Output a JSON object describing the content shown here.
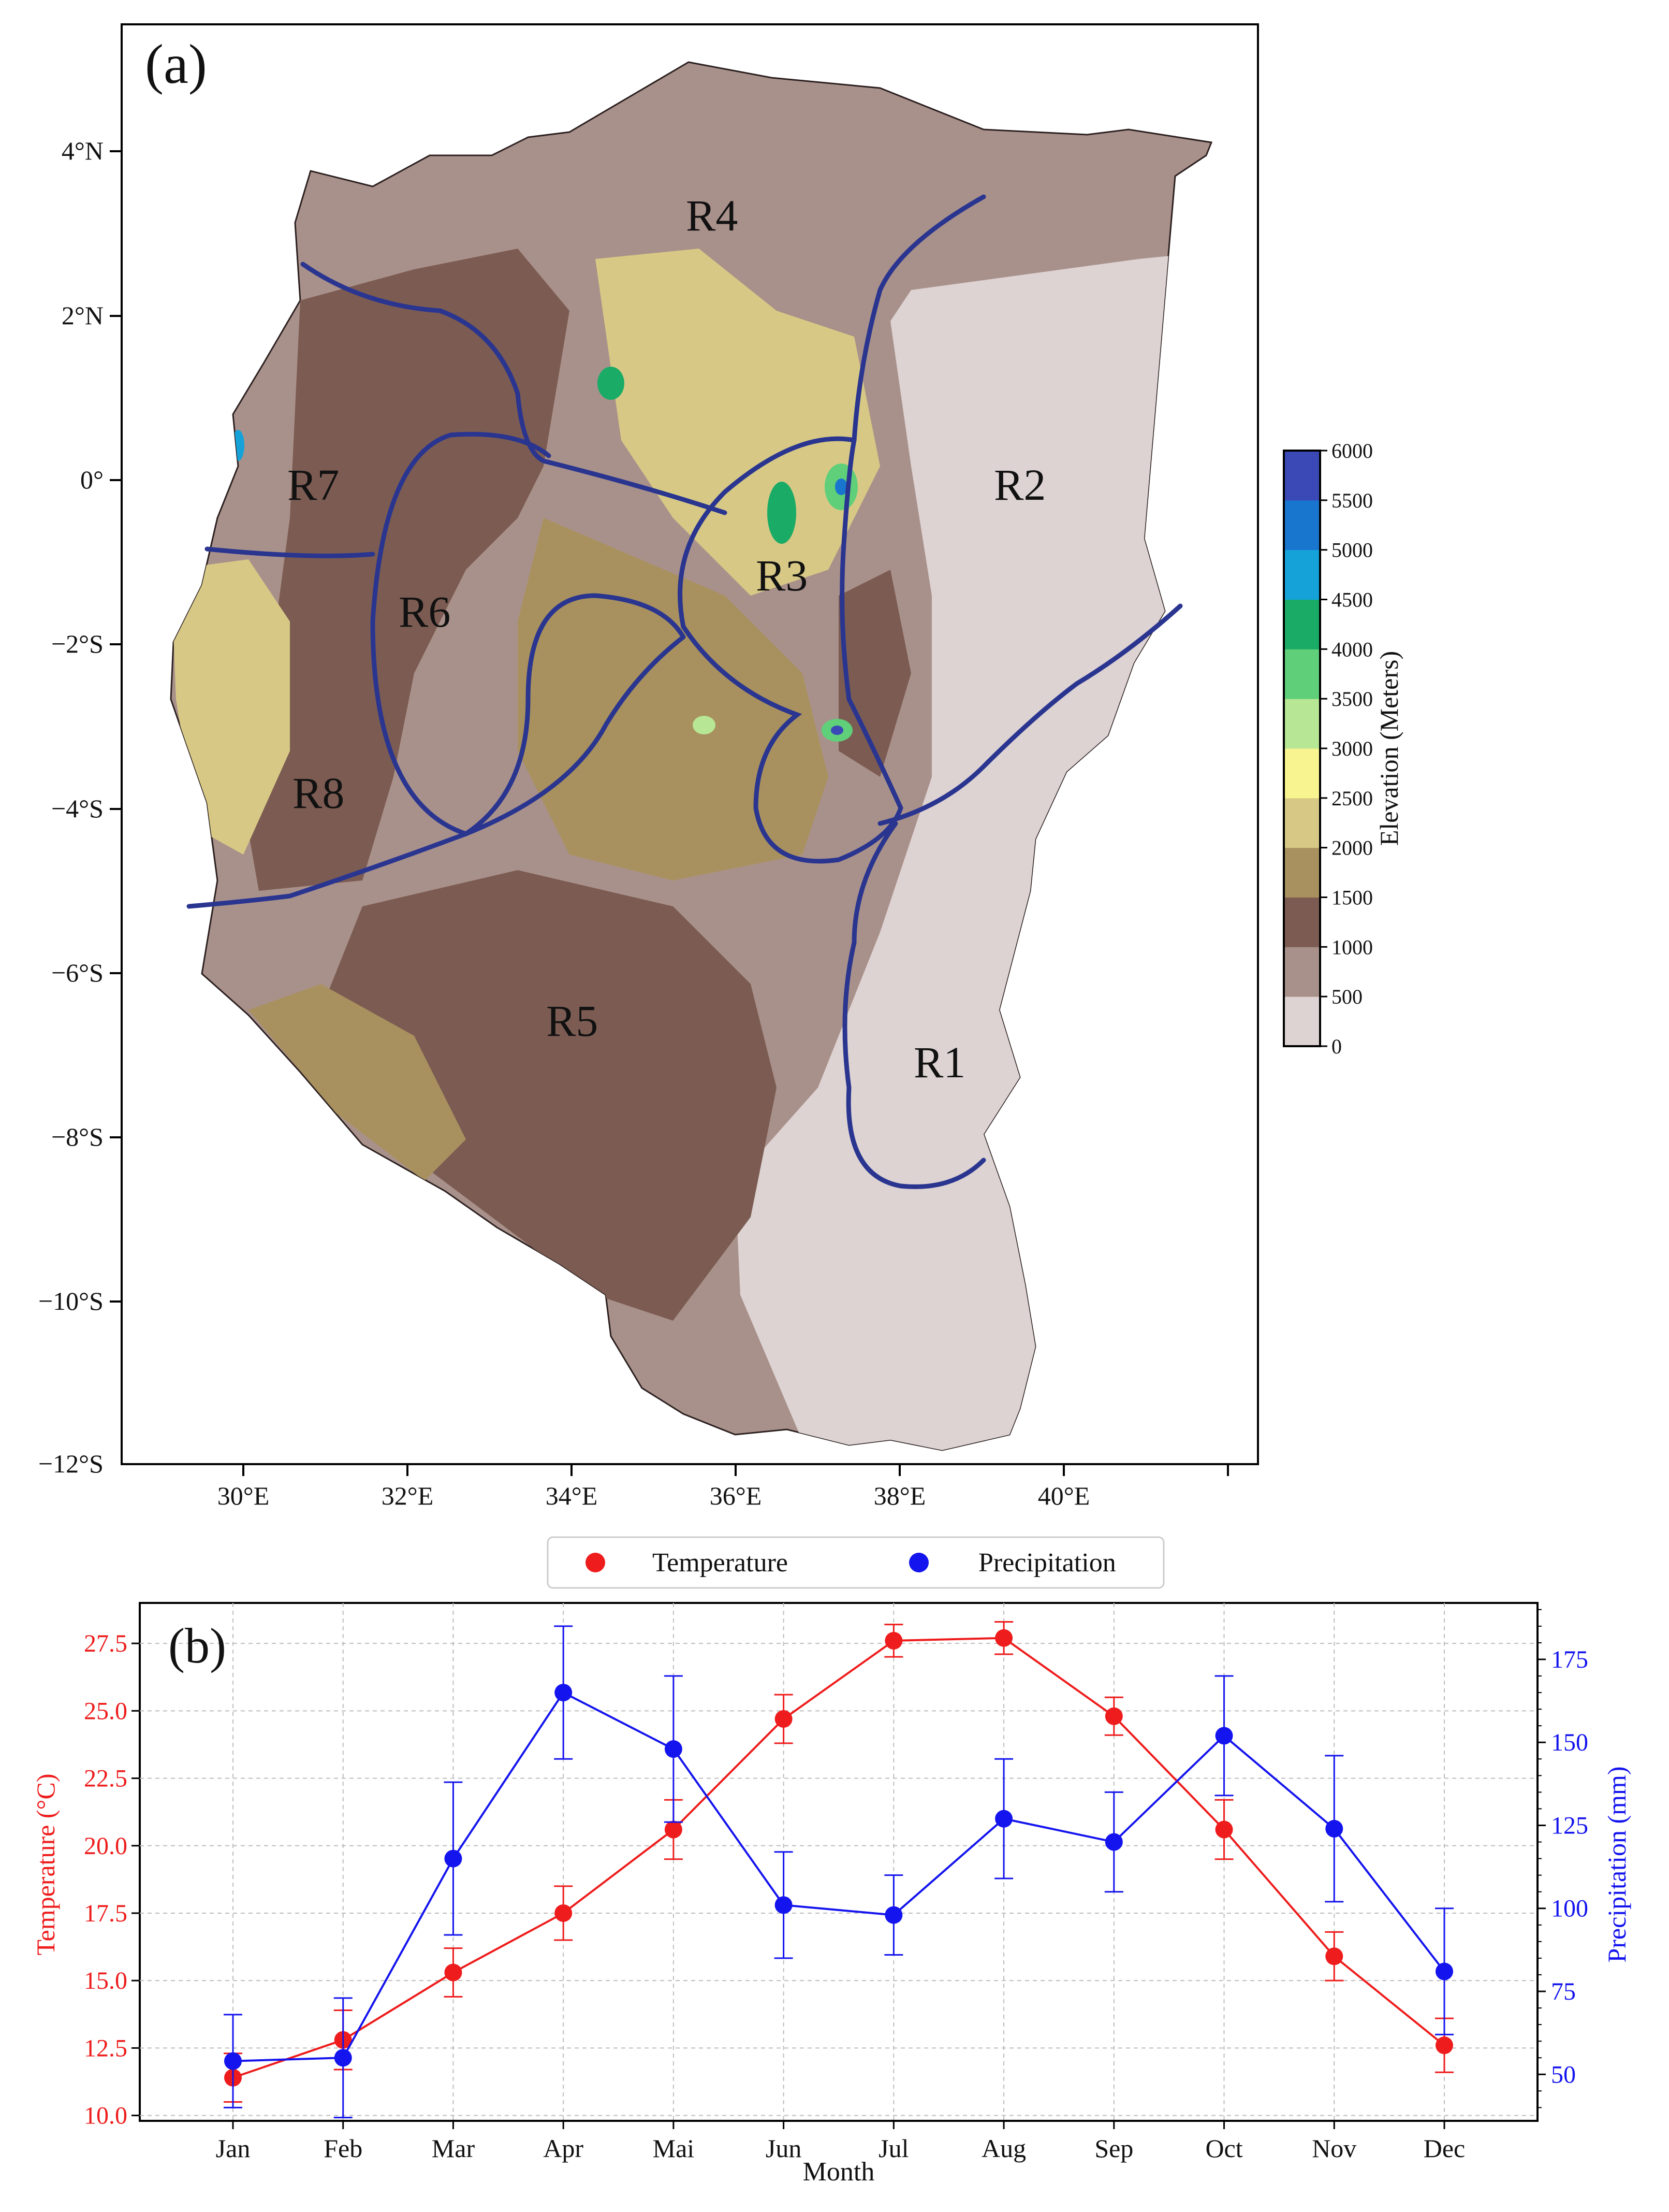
{
  "panel_a": {
    "label": "(a)",
    "lat_ticks": [
      "4°N",
      "2°N",
      "0°",
      "−2°S",
      "−4°S",
      "−6°S",
      "−8°S",
      "−10°S",
      "−12°S"
    ],
    "lon_ticks": [
      "30°E",
      "32°E",
      "34°E",
      "36°E",
      "38°E",
      "40°E"
    ],
    "regions": [
      "R1",
      "R2",
      "R3",
      "R4",
      "R5",
      "R6",
      "R7",
      "R8"
    ],
    "colorbar": {
      "label": "Elevation (Meters)",
      "ticks": [
        "6000",
        "5500",
        "5000",
        "4500",
        "4000",
        "3500",
        "3000",
        "2500",
        "2000",
        "1500",
        "1000",
        "500",
        "0"
      ],
      "colors": [
        "#ddd3d3",
        "#a9918b",
        "#7c5c52",
        "#a8915f",
        "#d7c985",
        "#f8f48f",
        "#b7e694",
        "#5fcf7a",
        "#1aab66",
        "#14a2d9",
        "#1976cf",
        "#3a49b5"
      ]
    },
    "colors": {
      "boundary": "#2a3590",
      "low": "#ddd3d3",
      "mid": "#a9918b",
      "high": "#7c5c52"
    }
  },
  "panel_b": {
    "label": "(b)",
    "legend": {
      "temperature": "Temperature",
      "precipitation": "Precipitation"
    },
    "y_left_ticks": [
      "27.5",
      "25.0",
      "22.5",
      "20.0",
      "17.5",
      "15.0",
      "12.5",
      "10.0"
    ],
    "y_right_ticks": [
      "175",
      "150",
      "125",
      "100",
      "75",
      "50"
    ],
    "colors": {
      "temperature": "#ee1c1c",
      "precipitation": "#1414ee"
    }
  },
  "chart_data": {
    "type": "line",
    "xlabel": "Month",
    "categories": [
      "Jan",
      "Feb",
      "Mar",
      "Apr",
      "Mai",
      "Jun",
      "Jul",
      "Aug",
      "Sep",
      "Oct",
      "Nov",
      "Dec"
    ],
    "series": [
      {
        "name": "Temperature",
        "axis": "left",
        "ylabel": "Temperature (°C)",
        "values": [
          11.4,
          12.8,
          15.3,
          17.5,
          20.6,
          24.7,
          27.6,
          27.7,
          24.8,
          20.6,
          15.9,
          12.6
        ],
        "err": [
          0.9,
          1.1,
          0.9,
          1.0,
          1.1,
          0.9,
          0.6,
          0.6,
          0.7,
          1.1,
          0.9,
          1.0
        ]
      },
      {
        "name": "Precipitation",
        "axis": "right",
        "ylabel": "Precipitation (mm)",
        "values": [
          54,
          55,
          115,
          165,
          148,
          101,
          98,
          127,
          120,
          152,
          124,
          81
        ],
        "err": [
          14,
          18,
          23,
          20,
          22,
          16,
          12,
          18,
          15,
          18,
          22,
          19
        ]
      }
    ],
    "ylim_left": [
      9.8,
      29.0
    ],
    "ylim_right": [
      36.0,
      192.0
    ]
  }
}
